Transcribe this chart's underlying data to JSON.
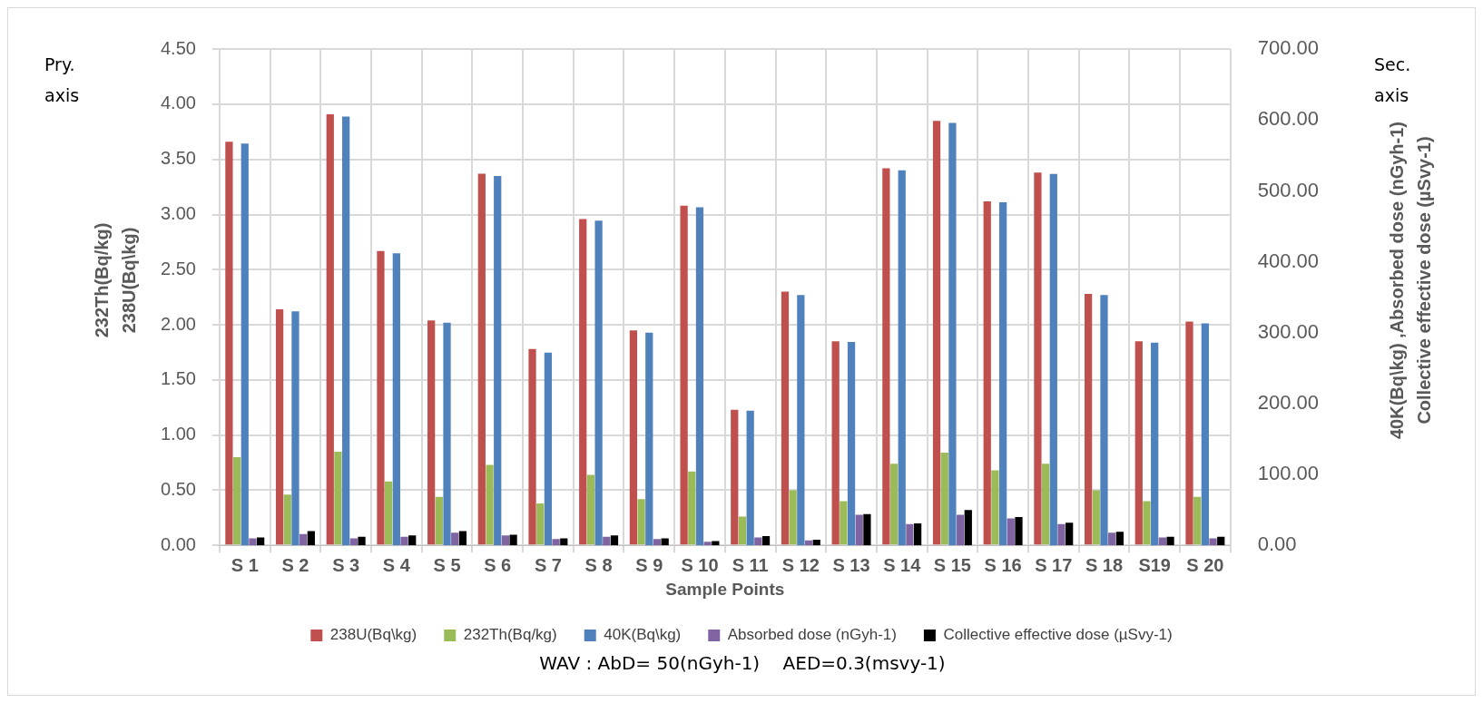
{
  "chart_data": {
    "type": "bar",
    "xlabel": "Sample Points",
    "ylabel": "232Th(Bq/kg)\n238U(Bq\\kg)",
    "y2label": "40K(Bq\\kg) ,Absorbed dose (nGyh-1)\nCollective effective dose (µSvy-1)",
    "annotations": [
      "Pry. axis",
      "Sec. axis",
      "WAV : AbD= 50(nGyh-1)    AED=0.3(msvy-1)"
    ],
    "categories": [
      "S 1",
      "S 2",
      "S 3",
      "S 4",
      "S 5",
      "S 6",
      "S 7",
      "S 8",
      "S 9",
      "S 10",
      "S 11",
      "S 12",
      "S 13",
      "S 14",
      "S 15",
      "S 16",
      "S 17",
      "S 18",
      "S19",
      "S 20"
    ],
    "series": [
      {
        "name": "238U(Bq\\kg)",
        "color": "#c0504d",
        "values": [
          3.66,
          2.14,
          3.91,
          2.67,
          2.04,
          3.37,
          1.78,
          2.96,
          1.95,
          3.08,
          1.23,
          2.3,
          1.85,
          3.42,
          3.85,
          3.12,
          3.38,
          2.28,
          1.85,
          2.03
        ]
      },
      {
        "name": "232Th(Bq/kg)",
        "color": "#9bbb59",
        "values": [
          0.8,
          0.46,
          0.85,
          0.58,
          0.44,
          0.73,
          0.38,
          0.64,
          0.42,
          0.67,
          0.26,
          0.5,
          0.4,
          0.74,
          0.84,
          0.68,
          0.74,
          0.5,
          0.4,
          0.44
        ]
      },
      {
        "name": "40K(Bq\\kg)",
        "color": "#4f81bd",
        "axis": "y2",
        "values": [
          567,
          330,
          605,
          412,
          314,
          521,
          272,
          458,
          300,
          477,
          190,
          353,
          287,
          529,
          596,
          484,
          524,
          353,
          286,
          313
        ]
      },
      {
        "name": "Absorbed dose (nGyh-1)",
        "color": "#8064a2",
        "axis": "y2",
        "values": [
          10,
          16,
          10,
          12,
          18,
          14,
          9,
          12,
          9,
          5,
          11,
          7,
          43,
          30,
          43,
          38,
          30,
          18,
          11,
          10
        ]
      },
      {
        "name": "Collective effective dose (µSvy-1)",
        "color": "#000000",
        "axis": "y2",
        "values": [
          11,
          20,
          12,
          14,
          20,
          15,
          10,
          14,
          10,
          6,
          13,
          8,
          44,
          31,
          50,
          40,
          32,
          19,
          12,
          12
        ]
      }
    ],
    "ylim": [
      0,
      4.5
    ],
    "yticks": [
      {
        "value": 0,
        "label": "0.00"
      },
      {
        "value": 0.5,
        "label": "0.50"
      },
      {
        "value": 1,
        "label": "1.00"
      },
      {
        "value": 1.5,
        "label": "1.50"
      },
      {
        "value": 2,
        "label": "2.00"
      },
      {
        "value": 2.5,
        "label": "2.50"
      },
      {
        "value": 3,
        "label": "3.00"
      },
      {
        "value": 3.5,
        "label": "3.50"
      },
      {
        "value": 4,
        "label": "4.00"
      },
      {
        "value": 4.5,
        "label": "4.50"
      }
    ],
    "y2lim": [
      0,
      700
    ],
    "y2ticks": [
      {
        "value": 0,
        "label": "0.00"
      },
      {
        "value": 100,
        "label": "100.00"
      },
      {
        "value": 200,
        "label": "200.00"
      },
      {
        "value": 300,
        "label": "300.00"
      },
      {
        "value": 400,
        "label": "400.00"
      },
      {
        "value": 500,
        "label": "500.00"
      },
      {
        "value": 600,
        "label": "600.00"
      },
      {
        "value": 700,
        "label": "700.00"
      }
    ],
    "grid": true,
    "legend": "bottom"
  }
}
